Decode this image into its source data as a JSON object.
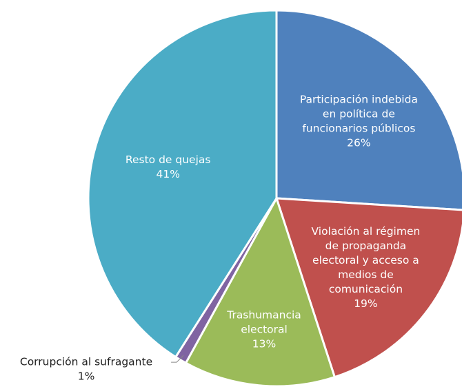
{
  "chart_data": {
    "type": "pie",
    "categories": [
      [
        "Participación indebida",
        "en política de",
        "funcionarios públicos"
      ],
      [
        "Violación al régimen",
        "de propaganda",
        "electoral y acceso a",
        "medios de",
        "comunicación"
      ],
      [
        "Trashumancia",
        "electoral"
      ],
      [
        "Corrupción al sufragante"
      ],
      [
        "Resto de quejas"
      ]
    ],
    "values": [
      26,
      19,
      13,
      1,
      41
    ],
    "value_labels": [
      "26%",
      "19%",
      "13%",
      "1%",
      "41%"
    ],
    "colors": [
      "#4f81bd",
      "#c0504d",
      "#9bbb59",
      "#8064a2",
      "#4bacc6"
    ]
  }
}
